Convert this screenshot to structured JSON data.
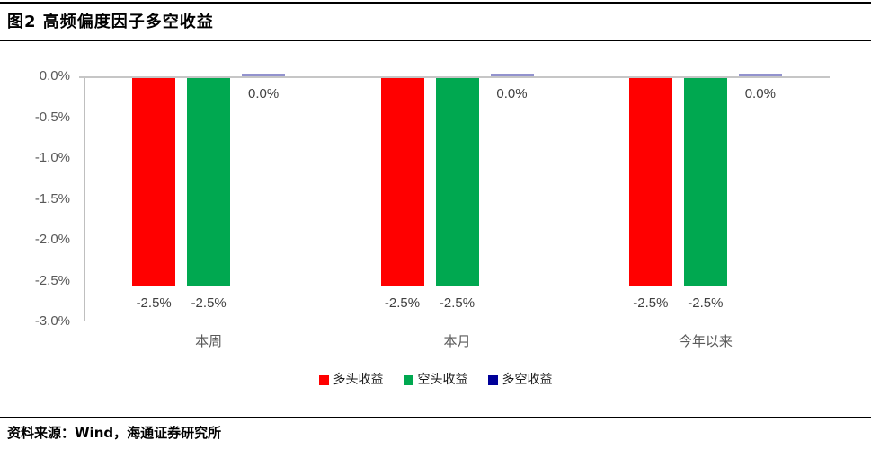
{
  "header": {
    "title": "图2  高频偏度因子多空收益"
  },
  "footer": {
    "source": "资料来源：Wind，海通证券研究所"
  },
  "chart_data": {
    "type": "bar",
    "title": "高频偏度因子多空收益",
    "categories": [
      "本周",
      "本月",
      "今年以来"
    ],
    "series": [
      {
        "name": "多头收益",
        "color": "#FF0000",
        "values": [
          -2.55,
          -2.55,
          -2.55
        ],
        "data_labels": [
          "-2.5%",
          "-2.5%",
          "-2.5%"
        ]
      },
      {
        "name": "空头收益",
        "color": "#00A850",
        "values": [
          -2.55,
          -2.55,
          -2.55
        ],
        "data_labels": [
          "-2.5%",
          "-2.5%",
          "-2.5%"
        ]
      },
      {
        "name": "多空收益",
        "color": "#000099",
        "zero_bar_color": "#9393CE",
        "values": [
          0.0,
          0.0,
          0.0
        ],
        "data_labels": [
          "0.0%",
          "0.0%",
          "0.0%"
        ]
      }
    ],
    "xlabel": "",
    "ylabel": "",
    "ylim": [
      -3.0,
      0.0
    ],
    "ytick_values": [
      0.0,
      -0.5,
      -1.0,
      -1.5,
      -2.0,
      -2.5,
      -3.0
    ],
    "ytick_labels": [
      "0.0%",
      "-0.5%",
      "-1.0%",
      "-1.5%",
      "-2.0%",
      "-2.5%",
      "-3.0%"
    ],
    "grid": false,
    "legend_position": "bottom",
    "axis_color": "#BFBFBF",
    "tick_text_color": "#595959",
    "data_label_color": "#404040"
  }
}
